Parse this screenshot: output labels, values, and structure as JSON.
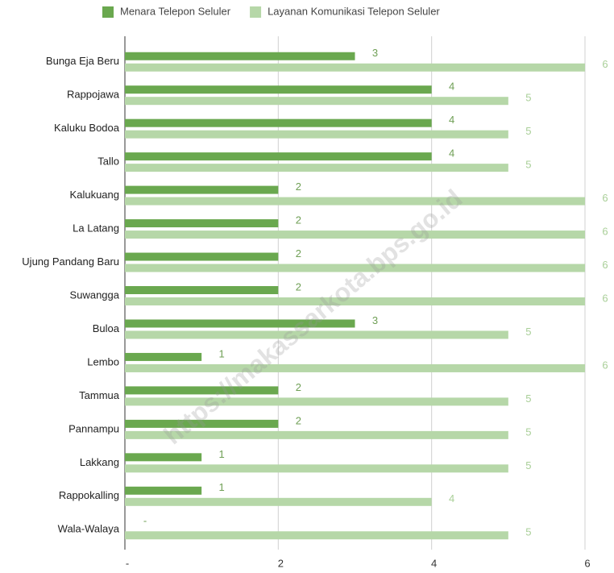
{
  "chart_data": {
    "type": "bar",
    "orientation": "horizontal",
    "watermark": "https://makassarkota.bps.go.id",
    "categories": [
      "Bunga Eja Beru",
      "Rappojawa",
      "Kaluku Bodoa",
      "Tallo",
      "Kalukuang",
      "La Latang",
      "Ujung Pandang Baru",
      "Suwangga",
      "Buloa",
      "Lembo",
      "Tammua",
      "Pannampu",
      "Lakkang",
      "Rappokalling",
      "Wala-Walaya"
    ],
    "series": [
      {
        "name": "Menara Telepon Seluler",
        "color": "#6aa84f",
        "label_color": "#6f9f55",
        "values": [
          3,
          4,
          4,
          4,
          2,
          2,
          2,
          2,
          3,
          1,
          2,
          2,
          1,
          1,
          0
        ],
        "value_labels": [
          "3",
          "4",
          "4",
          "4",
          "2",
          "2",
          "2",
          "2",
          "3",
          "1",
          "2",
          "2",
          "1",
          "1",
          "-"
        ]
      },
      {
        "name": "Layanan Komunikasi Telepon Seluler",
        "color": "#b6d7a8",
        "label_color": "#a9cf98",
        "values": [
          6,
          5,
          5,
          5,
          6,
          6,
          6,
          6,
          5,
          6,
          5,
          5,
          5,
          4,
          5
        ]
      }
    ],
    "xlim": [
      0,
      6
    ],
    "xticks": [
      {
        "value": 0,
        "label": "-"
      },
      2,
      4,
      6
    ],
    "grid": true,
    "legend": "top"
  }
}
